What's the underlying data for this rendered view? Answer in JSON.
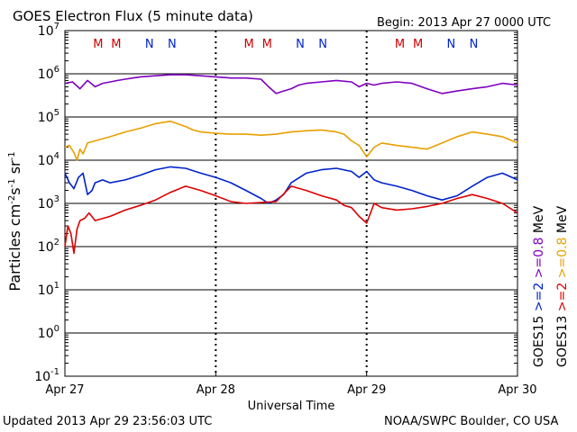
{
  "header": {
    "title": "GOES Electron Flux (5 minute data)",
    "begin": "Begin: 2013 Apr 27 0000 UTC"
  },
  "footer": {
    "updated": "Updated 2013 Apr 29 23:56:03 UTC",
    "credit": "NOAA/SWPC Boulder, CO USA"
  },
  "colors": {
    "goes15_ge08": "#7f00bf",
    "goes15_ge2": "#0022cc",
    "goes13_ge08": "#e8a000",
    "goes13_ge2": "#dd0000",
    "marker_m": "#cc0000",
    "marker_n": "#0022cc"
  },
  "chart_data": {
    "type": "line",
    "title": "GOES Electron Flux (5 minute data)",
    "xlabel": "Universal Time",
    "ylabel": "Particles cm-2s-1sr-1",
    "ylabel_parts": {
      "base": "Particles cm",
      "e1": "-2",
      "mid": "s",
      "e2": "-1",
      "tail": " sr",
      "e3": "-1"
    },
    "y_scale": "log",
    "ylim": [
      0.1,
      10000000
    ],
    "xlim": [
      0,
      3
    ],
    "x_ticks": [
      {
        "x": 0,
        "label": "Apr 27"
      },
      {
        "x": 1,
        "label": "Apr 28"
      },
      {
        "x": 2,
        "label": "Apr 29"
      },
      {
        "x": 3,
        "label": "Apr 30"
      }
    ],
    "y_ticks": [
      {
        "v": 0.1,
        "base": "10",
        "exp": "-1"
      },
      {
        "v": 1,
        "base": "10",
        "exp": "0"
      },
      {
        "v": 10,
        "base": "10",
        "exp": "1"
      },
      {
        "v": 100,
        "base": "10",
        "exp": "2"
      },
      {
        "v": 1000,
        "base": "10",
        "exp": "3"
      },
      {
        "v": 10000,
        "base": "10",
        "exp": "4"
      },
      {
        "v": 100000,
        "base": "10",
        "exp": "5"
      },
      {
        "v": 1000000,
        "base": "10",
        "exp": "6"
      },
      {
        "v": 10000000,
        "base": "10",
        "exp": "7"
      }
    ],
    "threshold": 1000,
    "markers": [
      {
        "x": 0.22,
        "label": "M",
        "kind": "m"
      },
      {
        "x": 0.34,
        "label": "M",
        "kind": "m"
      },
      {
        "x": 0.56,
        "label": "N",
        "kind": "n"
      },
      {
        "x": 0.71,
        "label": "N",
        "kind": "n"
      },
      {
        "x": 1.22,
        "label": "M",
        "kind": "m"
      },
      {
        "x": 1.34,
        "label": "M",
        "kind": "m"
      },
      {
        "x": 1.56,
        "label": "N",
        "kind": "n"
      },
      {
        "x": 1.71,
        "label": "N",
        "kind": "n"
      },
      {
        "x": 2.22,
        "label": "M",
        "kind": "m"
      },
      {
        "x": 2.34,
        "label": "M",
        "kind": "m"
      },
      {
        "x": 2.56,
        "label": "N",
        "kind": "n"
      },
      {
        "x": 2.71,
        "label": "N",
        "kind": "n"
      }
    ],
    "legend": [
      {
        "label": "GOES15",
        "color": "#000000"
      },
      {
        "label": ">=2",
        "color": "#0022cc"
      },
      {
        "label": ">=0.8",
        "color": "#7f00bf"
      },
      {
        "label": "MeV",
        "color": "#000000"
      },
      {
        "label": "GOES13",
        "color": "#000000"
      },
      {
        "label": ">=2",
        "color": "#dd0000"
      },
      {
        "label": ">=0.8",
        "color": "#e8a000"
      },
      {
        "label": "MeV",
        "color": "#000000"
      }
    ],
    "series": [
      {
        "name": "GOES15 >=0.8 MeV",
        "color": "#7f00bf",
        "x": [
          0.0,
          0.05,
          0.1,
          0.15,
          0.2,
          0.25,
          0.3,
          0.35,
          0.4,
          0.45,
          0.5,
          0.6,
          0.7,
          0.8,
          0.9,
          1.0,
          1.1,
          1.2,
          1.3,
          1.35,
          1.4,
          1.45,
          1.5,
          1.55,
          1.6,
          1.7,
          1.8,
          1.9,
          1.95,
          2.0,
          2.05,
          2.1,
          2.2,
          2.3,
          2.4,
          2.5,
          2.6,
          2.7,
          2.8,
          2.9,
          3.0
        ],
        "y": [
          600000,
          650000,
          450000,
          700000,
          500000,
          600000,
          650000,
          700000,
          750000,
          800000,
          850000,
          900000,
          950000,
          950000,
          900000,
          850000,
          800000,
          800000,
          750000,
          500000,
          350000,
          400000,
          450000,
          550000,
          600000,
          650000,
          700000,
          650000,
          500000,
          600000,
          550000,
          600000,
          650000,
          600000,
          450000,
          350000,
          400000,
          450000,
          500000,
          600000,
          550000
        ]
      },
      {
        "name": "GOES13 >=0.8 MeV",
        "color": "#e8a000",
        "x": [
          0.0,
          0.03,
          0.06,
          0.08,
          0.1,
          0.12,
          0.15,
          0.2,
          0.3,
          0.4,
          0.5,
          0.6,
          0.7,
          0.8,
          0.85,
          0.9,
          1.0,
          1.1,
          1.2,
          1.3,
          1.4,
          1.5,
          1.6,
          1.7,
          1.8,
          1.85,
          1.9,
          1.95,
          2.0,
          2.05,
          2.1,
          2.2,
          2.3,
          2.4,
          2.5,
          2.6,
          2.7,
          2.8,
          2.9,
          3.0
        ],
        "y": [
          20000,
          22000,
          15000,
          10000,
          18000,
          14000,
          25000,
          28000,
          35000,
          45000,
          55000,
          70000,
          80000,
          60000,
          50000,
          45000,
          42000,
          40000,
          40000,
          38000,
          40000,
          45000,
          48000,
          50000,
          45000,
          40000,
          28000,
          22000,
          12000,
          20000,
          25000,
          22000,
          20000,
          18000,
          25000,
          35000,
          45000,
          40000,
          35000,
          25000
        ]
      },
      {
        "name": "GOES15 >=2 MeV",
        "color": "#0022cc",
        "x": [
          0.0,
          0.03,
          0.06,
          0.09,
          0.12,
          0.15,
          0.18,
          0.2,
          0.25,
          0.3,
          0.4,
          0.5,
          0.6,
          0.7,
          0.8,
          0.9,
          1.0,
          1.1,
          1.2,
          1.3,
          1.35,
          1.4,
          1.45,
          1.5,
          1.6,
          1.7,
          1.8,
          1.9,
          1.95,
          2.0,
          2.05,
          2.1,
          2.2,
          2.3,
          2.4,
          2.5,
          2.6,
          2.7,
          2.8,
          2.9,
          3.0
        ],
        "y": [
          5000,
          3000,
          2200,
          4000,
          5000,
          1600,
          2000,
          3000,
          3500,
          3000,
          3500,
          4500,
          6000,
          7000,
          6500,
          5000,
          4000,
          3000,
          2000,
          1300,
          1000,
          1200,
          1600,
          3000,
          5000,
          6000,
          6500,
          5500,
          4000,
          5500,
          3500,
          3000,
          2500,
          2000,
          1500,
          1200,
          1500,
          2500,
          4000,
          5000,
          3500
        ]
      },
      {
        "name": "GOES13 >=2 MeV",
        "color": "#dd0000",
        "x": [
          0.0,
          0.02,
          0.04,
          0.06,
          0.08,
          0.1,
          0.13,
          0.16,
          0.2,
          0.3,
          0.4,
          0.5,
          0.6,
          0.7,
          0.8,
          0.9,
          1.0,
          1.1,
          1.2,
          1.3,
          1.4,
          1.5,
          1.6,
          1.7,
          1.8,
          1.85,
          1.9,
          1.95,
          2.0,
          2.05,
          2.1,
          2.2,
          2.3,
          2.4,
          2.5,
          2.6,
          2.7,
          2.8,
          2.9,
          3.0
        ],
        "y": [
          100,
          300,
          200,
          70,
          250,
          400,
          450,
          600,
          400,
          500,
          700,
          900,
          1200,
          1800,
          2500,
          2000,
          1500,
          1100,
          1000,
          1050,
          1100,
          2500,
          2000,
          1500,
          1200,
          900,
          800,
          500,
          350,
          1000,
          800,
          700,
          750,
          850,
          1000,
          1300,
          1600,
          1300,
          1000,
          600
        ]
      }
    ]
  }
}
